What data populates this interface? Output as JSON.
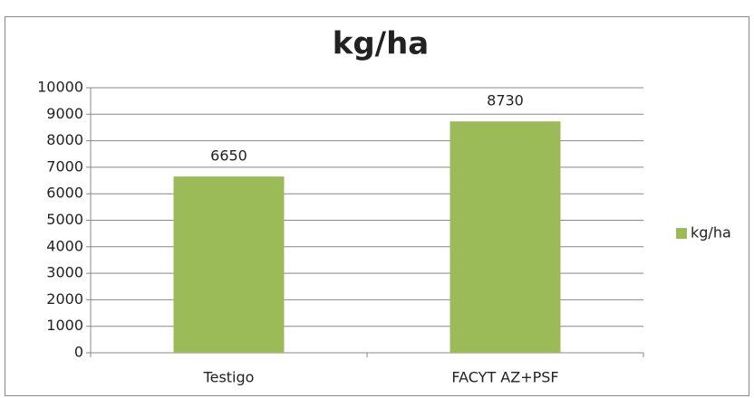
{
  "chart_data": {
    "type": "bar",
    "title": "kg/ha",
    "categories": [
      "Testigo",
      "FACYT AZ+PSF"
    ],
    "series": [
      {
        "name": "kg/ha",
        "color": "#9bbb59",
        "values": [
          6650,
          8730
        ]
      }
    ],
    "ylim": [
      0,
      10000
    ],
    "yticks": [
      0,
      1000,
      2000,
      3000,
      4000,
      5000,
      6000,
      7000,
      8000,
      9000,
      10000
    ],
    "grid": true,
    "legend": "right",
    "data_labels": true
  }
}
